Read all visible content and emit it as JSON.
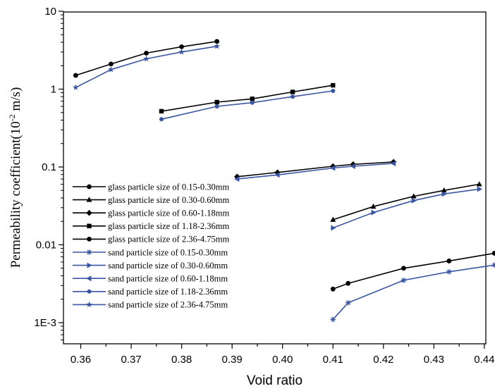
{
  "chart_data": {
    "type": "line",
    "xlabel": "Void ratio",
    "ylabel": "Permeability coefficient(10",
    "ylabel_exp": "-2",
    "ylabel_unit": " m/s)",
    "xlim": [
      0.352,
      0.446
    ],
    "ylim": [
      0.0005,
      10
    ],
    "yscale": "log",
    "x_ticks": [
      0.36,
      0.37,
      0.38,
      0.39,
      0.4,
      0.41,
      0.42,
      0.43,
      0.44
    ],
    "x_tick_labels": [
      "0.36",
      "0.37",
      "0.38",
      "0.39",
      "0.40",
      "0.41",
      "0.42",
      "0.43",
      "0.44"
    ],
    "y_ticks": [
      0.001,
      0.01,
      0.1,
      1,
      10
    ],
    "y_tick_labels": [
      "1E-3",
      "0.01",
      "0.1",
      "1",
      "10"
    ],
    "grid": false,
    "legend_position": "bottom-left",
    "series": [
      {
        "name": "glass particle size of 0.15-0.30mm",
        "color": "#000000",
        "marker": "circle",
        "x": [
          0.41,
          0.413,
          0.424,
          0.433,
          0.442
        ],
        "y": [
          0.0027,
          0.0032,
          0.005,
          0.0062,
          0.0078
        ]
      },
      {
        "name": "glass particle size of 0.30-0.60mm",
        "color": "#000000",
        "marker": "triangle-up",
        "x": [
          0.41,
          0.418,
          0.426,
          0.432,
          0.439
        ],
        "y": [
          0.021,
          0.031,
          0.042,
          0.05,
          0.06
        ]
      },
      {
        "name": "glass particle size of 0.60-1.18mm",
        "color": "#000000",
        "marker": "diamond",
        "x": [
          0.391,
          0.399,
          0.41,
          0.414,
          0.422
        ],
        "y": [
          0.075,
          0.085,
          0.102,
          0.108,
          0.116
        ]
      },
      {
        "name": "glass particle size of 1.18-2.36mm",
        "color": "#000000",
        "marker": "square",
        "x": [
          0.376,
          0.387,
          0.394,
          0.402,
          0.41
        ],
        "y": [
          0.52,
          0.68,
          0.75,
          0.92,
          1.12
        ]
      },
      {
        "name": "glass particle size of 2.36-4.75mm",
        "color": "#000000",
        "marker": "circle",
        "x": [
          0.359,
          0.366,
          0.373,
          0.38,
          0.387
        ],
        "y": [
          1.5,
          2.1,
          2.9,
          3.5,
          4.1
        ]
      },
      {
        "name": "sand particle size of 0.15-0.30mm",
        "color": "#3955a3",
        "marker": "asterisk",
        "x": [
          0.41,
          0.413,
          0.424,
          0.433,
          0.442
        ],
        "y": [
          0.0011,
          0.0018,
          0.0035,
          0.0045,
          0.0055
        ]
      },
      {
        "name": "sand particle size of 0.30-0.60mm",
        "color": "#3955a3",
        "marker": "triangle-right",
        "x": [
          0.41,
          0.418,
          0.426,
          0.432,
          0.439
        ],
        "y": [
          0.0165,
          0.026,
          0.037,
          0.045,
          0.052
        ]
      },
      {
        "name": "sand particle size of 0.60-1.18mm",
        "color": "#3955a3",
        "marker": "triangle-left",
        "x": [
          0.391,
          0.399,
          0.41,
          0.414,
          0.422
        ],
        "y": [
          0.07,
          0.079,
          0.097,
          0.102,
          0.111
        ]
      },
      {
        "name": "sand particle size of 1.18-2.36mm",
        "color": "#3955a3",
        "marker": "circle-small",
        "x": [
          0.376,
          0.387,
          0.394,
          0.402,
          0.41
        ],
        "y": [
          0.41,
          0.6,
          0.67,
          0.8,
          0.95
        ]
      },
      {
        "name": "sand particle size of 2.36-4.75mm",
        "color": "#3955a3",
        "marker": "star",
        "x": [
          0.359,
          0.366,
          0.373,
          0.38,
          0.387
        ],
        "y": [
          1.05,
          1.78,
          2.45,
          3.0,
          3.55
        ]
      }
    ]
  }
}
